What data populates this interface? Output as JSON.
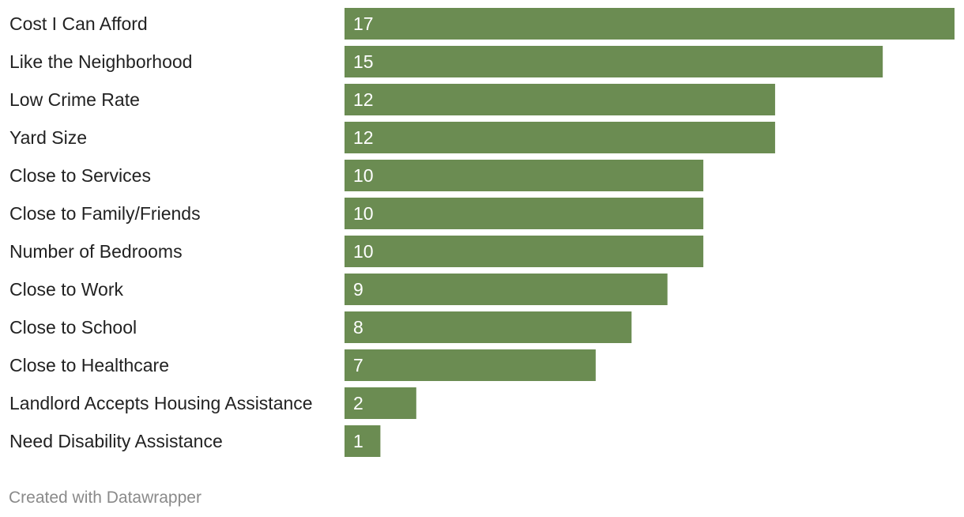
{
  "chart_data": {
    "type": "bar",
    "orientation": "horizontal",
    "categories": [
      "Cost I Can Afford",
      "Like the Neighborhood",
      "Low Crime Rate",
      "Yard Size",
      "Close to Services",
      "Close to Family/Friends",
      "Number of Bedrooms",
      "Close to Work",
      "Close to School",
      "Close to Healthcare",
      "Landlord Accepts Housing Assistance",
      "Need Disability Assistance"
    ],
    "values": [
      17,
      15,
      12,
      12,
      10,
      10,
      10,
      9,
      8,
      7,
      2,
      1
    ],
    "title": "",
    "xlabel": "",
    "ylabel": "",
    "xlim": [
      0,
      17
    ],
    "grid": false,
    "legend": "none",
    "data_labels": "inside-start",
    "colors": {
      "bar": "#6b8c52",
      "label_text": "#ffffff",
      "category_text": "#222222"
    }
  },
  "footer": {
    "credit": "Created with Datawrapper"
  }
}
